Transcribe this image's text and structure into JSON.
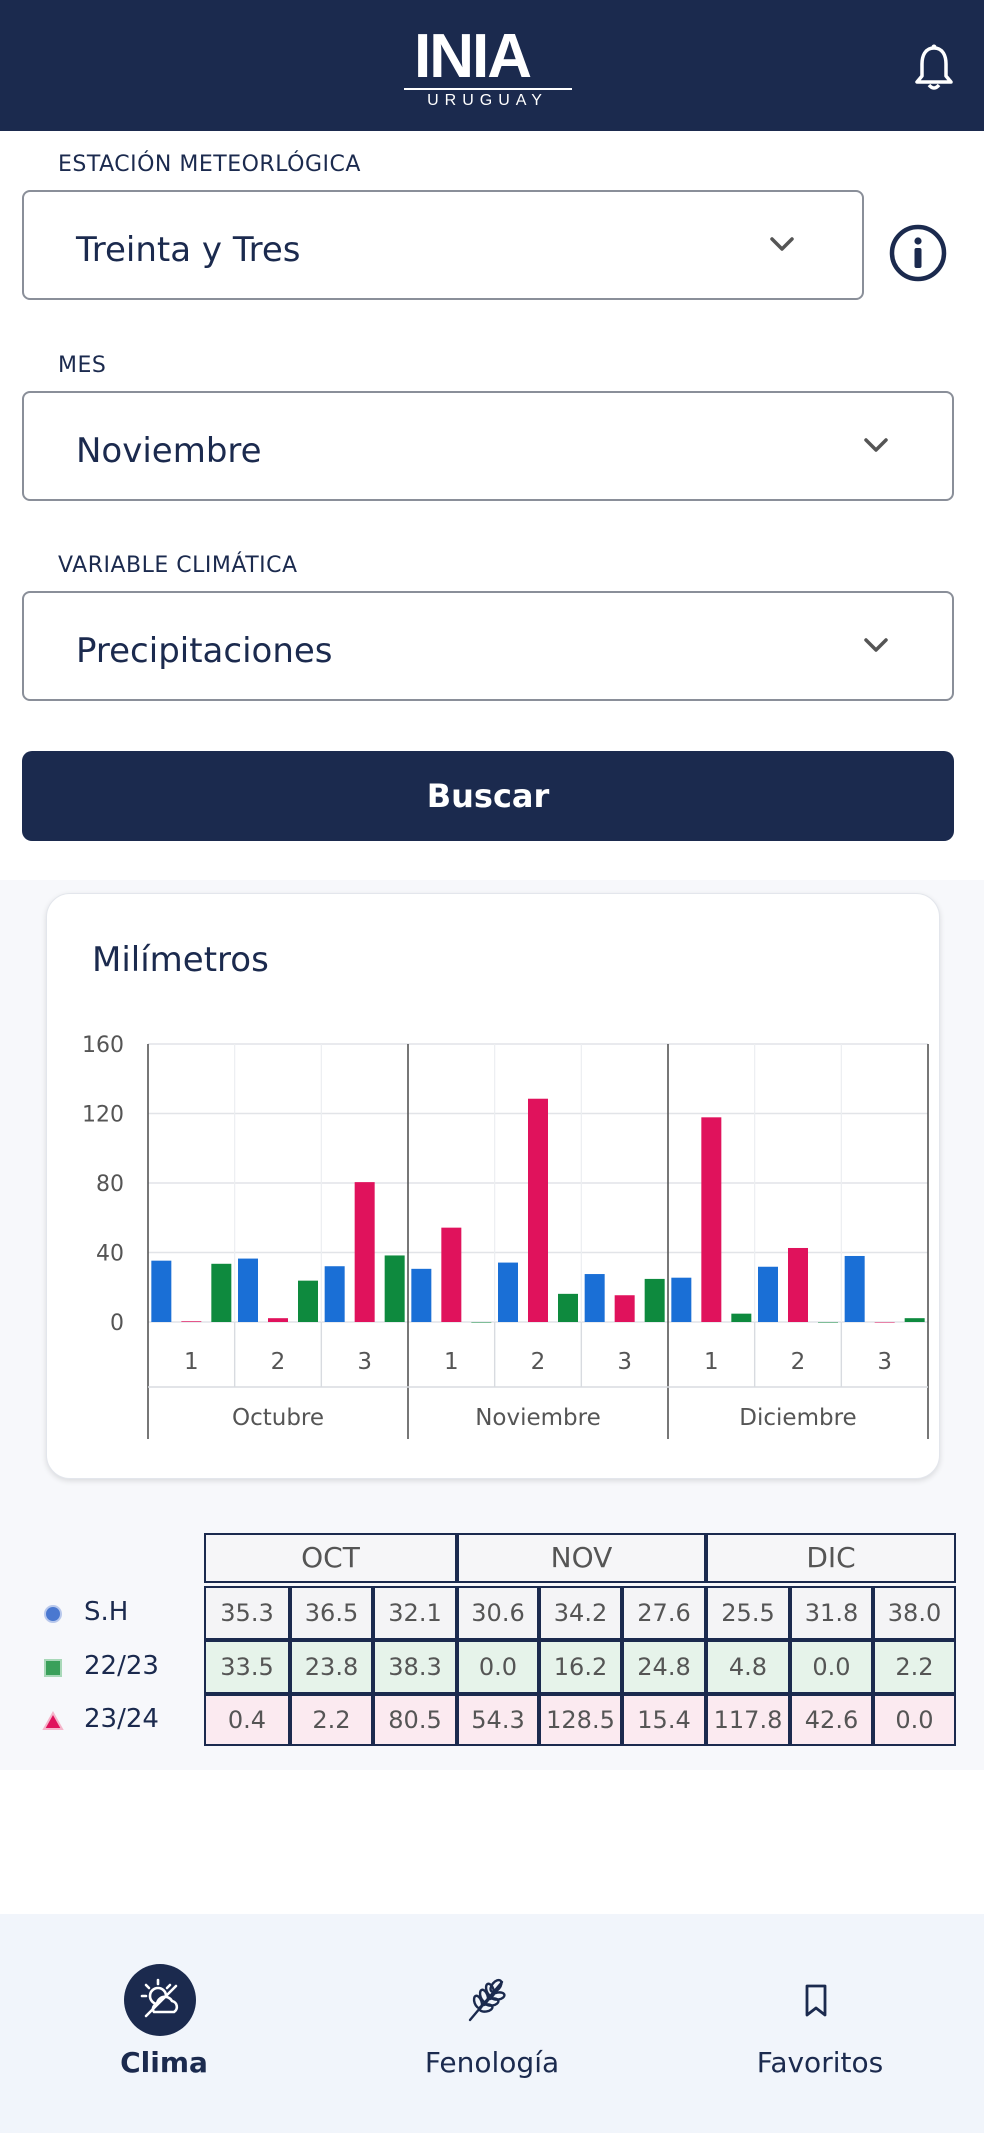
{
  "header": {
    "logo_text": "INIA",
    "logo_subtitle": "URUGUAY",
    "bell_icon": "bell-icon"
  },
  "form": {
    "station": {
      "label": "ESTACIÓN METEORLÓGICA",
      "value": "Treinta y Tres"
    },
    "month": {
      "label": "MES",
      "value": "Noviembre"
    },
    "variable": {
      "label": "VARIABLE CLIMÁTICA",
      "value": "Precipitaciones"
    },
    "search_label": "Buscar"
  },
  "chart_data": {
    "type": "bar",
    "title": "Milímetros",
    "ylim": [
      0,
      160
    ],
    "yticks": [
      0,
      40,
      80,
      120,
      160
    ],
    "groups": [
      "Octubre",
      "Noviembre",
      "Diciembre"
    ],
    "categories": [
      "1",
      "2",
      "3",
      "1",
      "2",
      "3",
      "1",
      "2",
      "3"
    ],
    "series": [
      {
        "name": "S.H",
        "color": "#1a6fd6",
        "values": [
          35.3,
          36.5,
          32.1,
          30.6,
          34.2,
          27.6,
          25.5,
          31.8,
          38.0
        ]
      },
      {
        "name": "23/24",
        "color": "#e0125c",
        "values": [
          0.4,
          2.2,
          80.5,
          54.3,
          128.5,
          15.4,
          117.8,
          42.6,
          0.0
        ]
      },
      {
        "name": "22/23",
        "color": "#0e8a3e",
        "values": [
          33.5,
          23.8,
          38.3,
          0.0,
          16.2,
          24.8,
          4.8,
          0.0,
          2.2
        ]
      }
    ],
    "grid": true
  },
  "table": {
    "months": [
      "OCT",
      "NOV",
      "DIC"
    ],
    "rows": [
      {
        "label": "S.H",
        "marker": "circle",
        "color": "#4a78d0",
        "bg": "#f4f4f6",
        "values": [
          "35.3",
          "36.5",
          "32.1",
          "30.6",
          "34.2",
          "27.6",
          "25.5",
          "31.8",
          "38.0"
        ]
      },
      {
        "label": "22/23",
        "marker": "square",
        "color": "#3aa05a",
        "bg": "#e6f3ea",
        "values": [
          "33.5",
          "23.8",
          "38.3",
          "0.0",
          "16.2",
          "24.8",
          "4.8",
          "0.0",
          "2.2"
        ]
      },
      {
        "label": "23/24",
        "marker": "triangle",
        "color": "#e0125c",
        "bg": "#fbeaf0",
        "values": [
          "0.4",
          "2.2",
          "80.5",
          "54.3",
          "128.5",
          "15.4",
          "117.8",
          "42.6",
          "0.0"
        ]
      }
    ]
  },
  "nav": {
    "items": [
      {
        "label": "Clima",
        "icon": "weather-icon",
        "active": true
      },
      {
        "label": "Fenología",
        "icon": "wheat-icon",
        "active": false
      },
      {
        "label": "Favoritos",
        "icon": "bookmark-icon",
        "active": false
      }
    ]
  }
}
